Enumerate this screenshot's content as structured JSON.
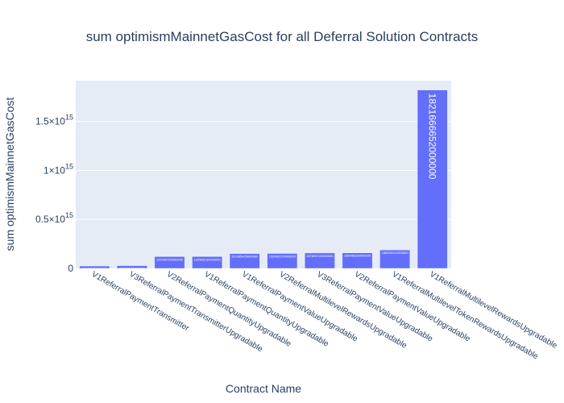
{
  "chart_data": {
    "type": "bar",
    "title": "sum optimismMainnetGasCost for all Deferral Solution Contracts",
    "xlabel": "Contract Name",
    "ylabel": "sum optimismMainnetGasCost",
    "categories": [
      "V1ReferralPaymentTransmitter",
      "V3ReferralPaymentTransmitterUpgradable",
      "V2ReferralPaymentQuantityUpgradable",
      "V1ReferralPaymentQuantityUpgradable",
      "V1ReferralPaymentValueUpgradable",
      "V2ReferralMultilevelRewardsUpgradable",
      "V3ReferralPaymentValueUpgradable",
      "V2ReferralPaymentValueUpgradable",
      "V1ReferralMultilevelTokenRewardsUpgradable",
      "V1ReferralMultilevelRewardsUpgradable"
    ],
    "values": [
      24122325000000,
      27789748000000,
      120406790000000,
      120985130000000,
      151065425000000,
      152489170000000,
      157699720000000,
      158496280000000,
      188355411000000,
      1821666652000000
    ],
    "value_labels": [
      "24122325000000",
      "27789748000000",
      "120406790000000",
      "120985130000000",
      "151065425000000",
      "152489170000000",
      "157699720000000",
      "158496280000000",
      "188355411000000",
      "1821666652000000"
    ],
    "yticks": [
      {
        "value": 0,
        "mantissa": "0",
        "exp": ""
      },
      {
        "value": 500000000000000,
        "mantissa": "0.5×10",
        "exp": "15"
      },
      {
        "value": 1000000000000000,
        "mantissa": "1×10",
        "exp": "15"
      },
      {
        "value": 1500000000000000,
        "mantissa": "1.5×10",
        "exp": "15"
      }
    ],
    "ylim": [
      0,
      1917543844210526
    ],
    "grid": true,
    "colors": {
      "bar": "#636efa",
      "plot_bg": "#e5ecf6",
      "grid": "#ffffff",
      "text": "#2a3f5f"
    }
  }
}
